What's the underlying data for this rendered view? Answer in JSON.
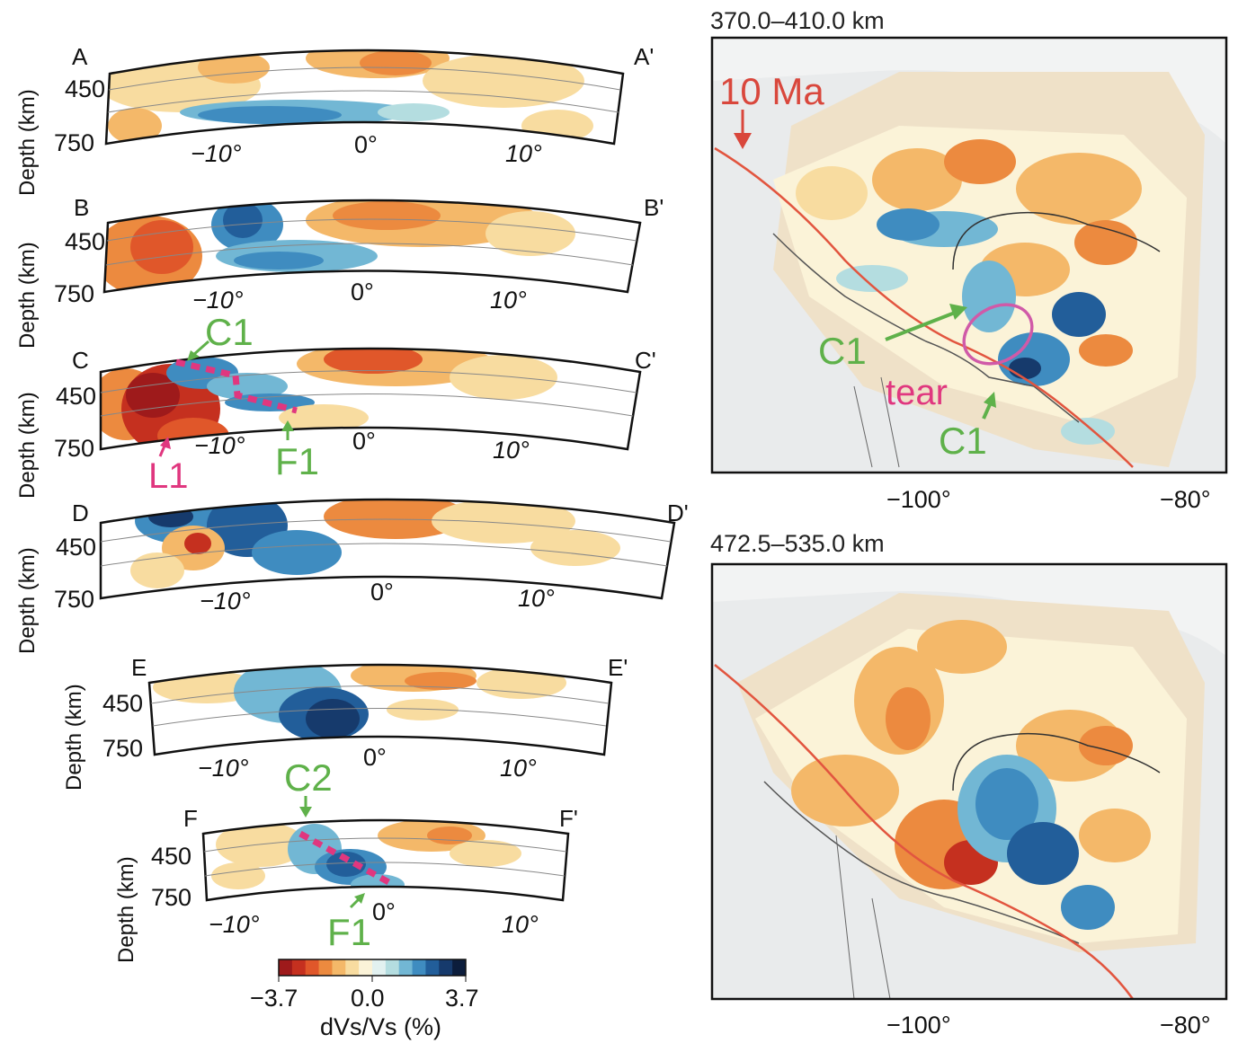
{
  "colorbar": {
    "min_label": "−3.7",
    "mid_label": "0.0",
    "max_label": "3.7",
    "title": "dVs/Vs (%)",
    "colors": [
      "#9e1a1b",
      "#c5301f",
      "#e0572a",
      "#ec8a3f",
      "#f4b869",
      "#f8dca0",
      "#fbf3d8",
      "#e2f1f0",
      "#b4dde0",
      "#72b7d4",
      "#3f8cc0",
      "#225e9a",
      "#163a6c",
      "#0c1d3c"
    ]
  },
  "sections": [
    {
      "id": "A",
      "start": "A",
      "end": "A'",
      "ticks": [
        "−10°",
        "0°",
        "10°"
      ]
    },
    {
      "id": "B",
      "start": "B",
      "end": "B'",
      "ticks": [
        "−10°",
        "0°",
        "10°"
      ]
    },
    {
      "id": "C",
      "start": "C",
      "end": "C'",
      "ticks": [
        "−10°",
        "0°",
        "10°"
      ]
    },
    {
      "id": "D",
      "start": "D",
      "end": "D'",
      "ticks": [
        "−10°",
        "0°",
        "10°"
      ]
    },
    {
      "id": "E",
      "start": "E",
      "end": "E'",
      "ticks": [
        "−10°",
        "0°",
        "10°"
      ]
    },
    {
      "id": "F",
      "start": "F",
      "end": "F'",
      "ticks": [
        "−10°",
        "0°",
        "10°"
      ]
    }
  ],
  "depth_axis": {
    "label": "Depth (km)",
    "ticks": [
      "450",
      "750"
    ]
  },
  "annotations": {
    "c1": "C1",
    "c2": "C2",
    "f1": "F1",
    "l1": "L1",
    "tear": "tear",
    "ma10": "10 Ma"
  },
  "maps": [
    {
      "title": "370.0–410.0 km",
      "xticks": [
        "−100°",
        "−80°"
      ]
    },
    {
      "title": "472.5–535.0 km",
      "xticks": [
        "−100°",
        "−80°"
      ]
    }
  ]
}
